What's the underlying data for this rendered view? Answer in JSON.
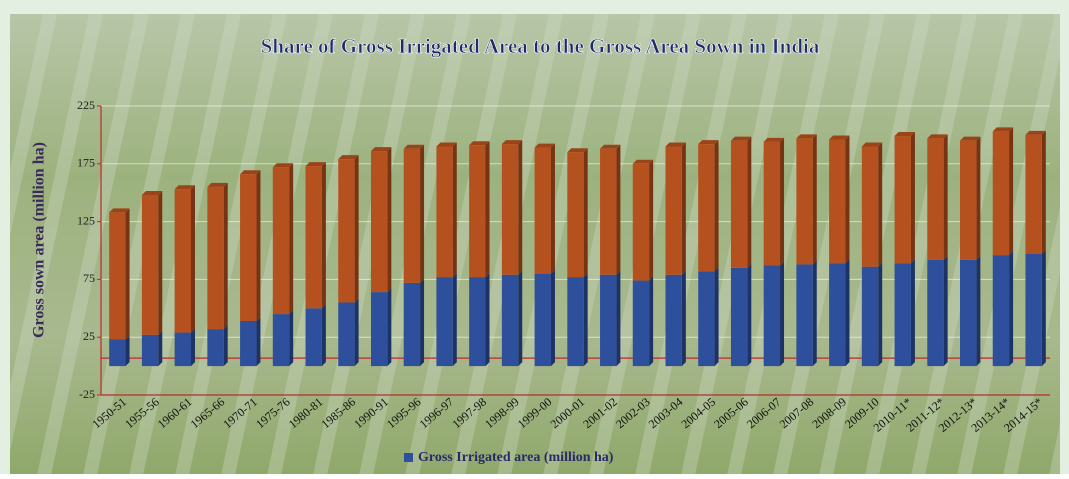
{
  "chart_data": {
    "type": "stacked_bar",
    "title": "Share of Gross Irrigated Area to the Gross Area Sown in India",
    "y_label": "Gross sown area (million ha)",
    "categories": [
      "1950-51",
      "1955-56",
      "1960-61",
      "1965-66",
      "1970-71",
      "1975-76",
      "1980-81",
      "1985-86",
      "1990-91",
      "1995-96",
      "1996-97",
      "1997-98",
      "1998-99",
      "1999-00",
      "2000-01",
      "2001-02",
      "2002-03",
      "2003-04",
      "2004-05",
      "2005-06",
      "2006-07",
      "2007-08",
      "2008-09",
      "2009-10",
      "2010-11*",
      "2011-12*",
      "2012-13*",
      "2013-14*",
      "2014-15*"
    ],
    "series": [
      {
        "name": "Gross Irrigated area (million ha)",
        "color": "#2e4f9c",
        "values": [
          23,
          27,
          29,
          32,
          39,
          45,
          50,
          55,
          64,
          72,
          77,
          77,
          79,
          80,
          77,
          79,
          74,
          79,
          82,
          85,
          87,
          88,
          89,
          86,
          89,
          92,
          92,
          96,
          97
        ]
      },
      {
        "color": "#b5501f",
        "values": [
          110,
          121,
          124,
          123,
          127,
          127,
          123,
          124,
          122,
          116,
          113,
          114,
          113,
          109,
          108,
          109,
          101,
          111,
          110,
          110,
          107,
          109,
          107,
          104,
          110,
          105,
          103,
          107,
          103
        ]
      }
    ],
    "ylim": [
      -25,
      225
    ],
    "yticks": [
      -25,
      25,
      75,
      125,
      175,
      225
    ],
    "grid": true
  }
}
